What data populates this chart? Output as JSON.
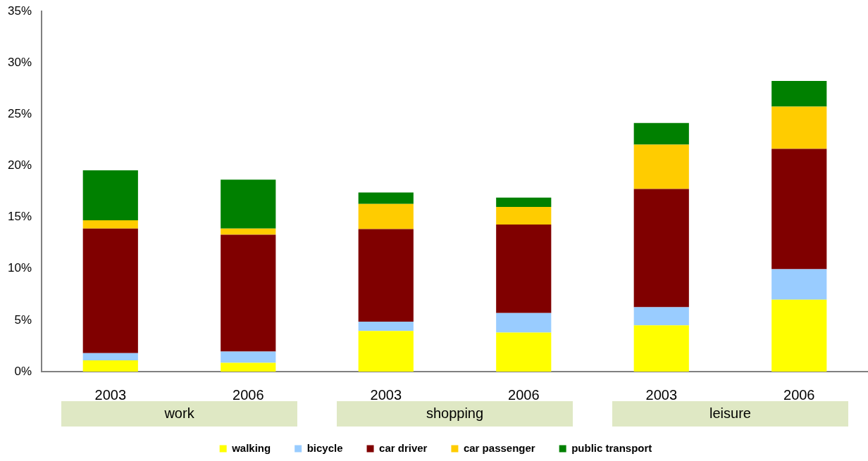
{
  "chart_data": {
    "type": "bar",
    "stacked": true,
    "categories": [
      "2003",
      "2006",
      "2003",
      "2006",
      "2003",
      "2006"
    ],
    "series": [
      {
        "name": "walking",
        "color": "#ffff00",
        "values": [
          1.1,
          0.85,
          3.95,
          3.8,
          4.5,
          7.0
        ]
      },
      {
        "name": "bicycle",
        "color": "#99ccff",
        "values": [
          0.7,
          1.1,
          0.9,
          1.9,
          1.75,
          2.95
        ]
      },
      {
        "name": "car driver",
        "color": "#800000",
        "values": [
          12.1,
          11.35,
          9.0,
          8.6,
          11.5,
          11.7
        ]
      },
      {
        "name": "car passenger",
        "color": "#ffcc00",
        "values": [
          0.8,
          0.6,
          2.45,
          1.7,
          4.3,
          4.1
        ]
      },
      {
        "name": "public transport",
        "color": "#008000",
        "values": [
          4.85,
          4.75,
          1.1,
          0.9,
          2.1,
          2.5
        ]
      }
    ],
    "annotations": [
      "work",
      "shopping",
      "leisure"
    ],
    "ylim": [
      0,
      35
    ],
    "yticks": [
      {
        "value": 0,
        "label": "0%"
      },
      {
        "value": 5,
        "label": "5%"
      },
      {
        "value": 10,
        "label": "10%"
      },
      {
        "value": 15,
        "label": "15%"
      },
      {
        "value": 20,
        "label": "20%"
      },
      {
        "value": 25,
        "label": "25%"
      },
      {
        "value": 30,
        "label": "30%"
      },
      {
        "value": 35,
        "label": "35%"
      }
    ],
    "grid": false,
    "legend": "bottom"
  }
}
